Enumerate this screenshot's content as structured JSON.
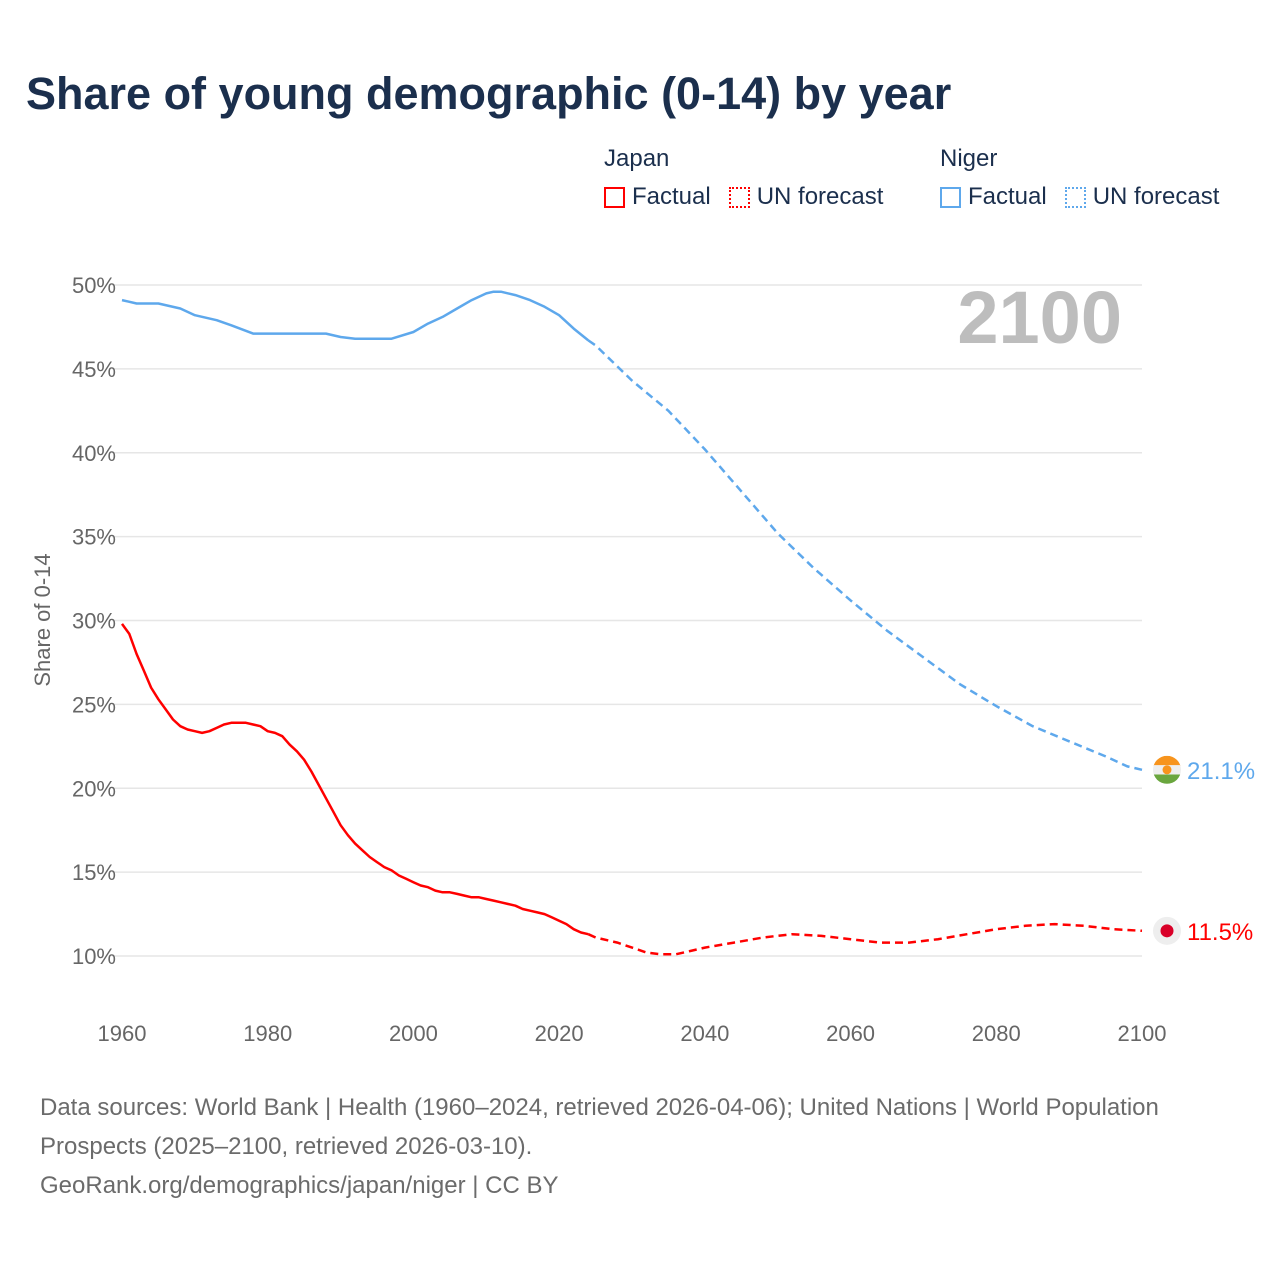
{
  "title": "Share of young demographic (0-14) by year",
  "legend": {
    "groups": [
      {
        "name": "Japan",
        "factual": "Factual",
        "forecast": "UN forecast",
        "color": "#ff0000"
      },
      {
        "name": "Niger",
        "factual": "Factual",
        "forecast": "UN forecast",
        "color": "#5ea8ec"
      }
    ]
  },
  "footer": {
    "sources": "Data sources: World Bank | Health (1960–2024, retrieved 2026-04-06); United Nations | World Population Prospects (2025–2100, retrieved 2026-03-10).",
    "link": "GeoRank.org/demographics/japan/niger | CC BY"
  },
  "chart_data": {
    "type": "line",
    "title": "Share of young demographic (0-14) by year",
    "ylabel": "Share of 0-14",
    "xlabel": "",
    "year_label": "2100",
    "xlim": [
      1960,
      2100
    ],
    "ylim": [
      10,
      50
    ],
    "xticks": [
      "1960",
      "1980",
      "2000",
      "2020",
      "2040",
      "2060",
      "2080",
      "2100"
    ],
    "yticks": [
      "10%",
      "15%",
      "20%",
      "25%",
      "30%",
      "35%",
      "40%",
      "45%",
      "50%"
    ],
    "grid": true,
    "series": [
      {
        "name": "Japan",
        "color": "#ff0000",
        "end_label": "11.5%",
        "flag": {
          "bg": "#eeeeee",
          "dot": "#d90028"
        },
        "factual": [
          [
            1960,
            29.8
          ],
          [
            1961,
            29.2
          ],
          [
            1962,
            28.0
          ],
          [
            1963,
            27.0
          ],
          [
            1964,
            26.0
          ],
          [
            1965,
            25.3
          ],
          [
            1966,
            24.7
          ],
          [
            1967,
            24.1
          ],
          [
            1968,
            23.7
          ],
          [
            1969,
            23.5
          ],
          [
            1970,
            23.4
          ],
          [
            1971,
            23.3
          ],
          [
            1972,
            23.4
          ],
          [
            1973,
            23.6
          ],
          [
            1974,
            23.8
          ],
          [
            1975,
            23.9
          ],
          [
            1976,
            23.9
          ],
          [
            1977,
            23.9
          ],
          [
            1978,
            23.8
          ],
          [
            1979,
            23.7
          ],
          [
            1980,
            23.4
          ],
          [
            1981,
            23.3
          ],
          [
            1982,
            23.1
          ],
          [
            1983,
            22.6
          ],
          [
            1984,
            22.2
          ],
          [
            1985,
            21.7
          ],
          [
            1986,
            21.0
          ],
          [
            1987,
            20.2
          ],
          [
            1988,
            19.4
          ],
          [
            1989,
            18.6
          ],
          [
            1990,
            17.8
          ],
          [
            1991,
            17.2
          ],
          [
            1992,
            16.7
          ],
          [
            1993,
            16.3
          ],
          [
            1994,
            15.9
          ],
          [
            1995,
            15.6
          ],
          [
            1996,
            15.3
          ],
          [
            1997,
            15.1
          ],
          [
            1998,
            14.8
          ],
          [
            1999,
            14.6
          ],
          [
            2000,
            14.4
          ],
          [
            2001,
            14.2
          ],
          [
            2002,
            14.1
          ],
          [
            2003,
            13.9
          ],
          [
            2004,
            13.8
          ],
          [
            2005,
            13.8
          ],
          [
            2006,
            13.7
          ],
          [
            2007,
            13.6
          ],
          [
            2008,
            13.5
          ],
          [
            2009,
            13.5
          ],
          [
            2010,
            13.4
          ],
          [
            2011,
            13.3
          ],
          [
            2012,
            13.2
          ],
          [
            2013,
            13.1
          ],
          [
            2014,
            13.0
          ],
          [
            2015,
            12.8
          ],
          [
            2016,
            12.7
          ],
          [
            2017,
            12.6
          ],
          [
            2018,
            12.5
          ],
          [
            2019,
            12.3
          ],
          [
            2020,
            12.1
          ],
          [
            2021,
            11.9
          ],
          [
            2022,
            11.6
          ],
          [
            2023,
            11.4
          ],
          [
            2024,
            11.3
          ]
        ],
        "forecast": [
          [
            2024,
            11.3
          ],
          [
            2025,
            11.1
          ],
          [
            2028,
            10.8
          ],
          [
            2030,
            10.5
          ],
          [
            2032,
            10.2
          ],
          [
            2034,
            10.1
          ],
          [
            2036,
            10.1
          ],
          [
            2038,
            10.3
          ],
          [
            2040,
            10.5
          ],
          [
            2044,
            10.8
          ],
          [
            2048,
            11.1
          ],
          [
            2052,
            11.3
          ],
          [
            2056,
            11.2
          ],
          [
            2060,
            11.0
          ],
          [
            2064,
            10.8
          ],
          [
            2068,
            10.8
          ],
          [
            2072,
            11.0
          ],
          [
            2076,
            11.3
          ],
          [
            2080,
            11.6
          ],
          [
            2084,
            11.8
          ],
          [
            2088,
            11.9
          ],
          [
            2092,
            11.8
          ],
          [
            2096,
            11.6
          ],
          [
            2100,
            11.5
          ]
        ]
      },
      {
        "name": "Niger",
        "color": "#5ea8ec",
        "end_label": "21.1%",
        "flag": {
          "top": "#f7941d",
          "mid": "#eeeeee",
          "bottom": "#6aa63e",
          "dot": "#f7941d"
        },
        "factual": [
          [
            1960,
            49.1
          ],
          [
            1962,
            48.9
          ],
          [
            1965,
            48.9
          ],
          [
            1968,
            48.6
          ],
          [
            1970,
            48.2
          ],
          [
            1973,
            47.9
          ],
          [
            1975,
            47.6
          ],
          [
            1978,
            47.1
          ],
          [
            1982,
            47.1
          ],
          [
            1988,
            47.1
          ],
          [
            1990,
            46.9
          ],
          [
            1992,
            46.8
          ],
          [
            1997,
            46.8
          ],
          [
            2000,
            47.2
          ],
          [
            2002,
            47.7
          ],
          [
            2004,
            48.1
          ],
          [
            2006,
            48.6
          ],
          [
            2008,
            49.1
          ],
          [
            2010,
            49.5
          ],
          [
            2011,
            49.6
          ],
          [
            2012,
            49.6
          ],
          [
            2014,
            49.4
          ],
          [
            2016,
            49.1
          ],
          [
            2018,
            48.7
          ],
          [
            2020,
            48.2
          ],
          [
            2022,
            47.4
          ],
          [
            2024,
            46.7
          ]
        ],
        "forecast": [
          [
            2024,
            46.7
          ],
          [
            2025,
            46.4
          ],
          [
            2030,
            44.3
          ],
          [
            2035,
            42.5
          ],
          [
            2040,
            40.2
          ],
          [
            2045,
            37.7
          ],
          [
            2050,
            35.2
          ],
          [
            2055,
            33.1
          ],
          [
            2060,
            31.2
          ],
          [
            2065,
            29.4
          ],
          [
            2070,
            27.8
          ],
          [
            2075,
            26.2
          ],
          [
            2080,
            24.9
          ],
          [
            2085,
            23.7
          ],
          [
            2090,
            22.8
          ],
          [
            2095,
            21.9
          ],
          [
            2098,
            21.3
          ],
          [
            2100,
            21.1
          ]
        ]
      }
    ]
  }
}
